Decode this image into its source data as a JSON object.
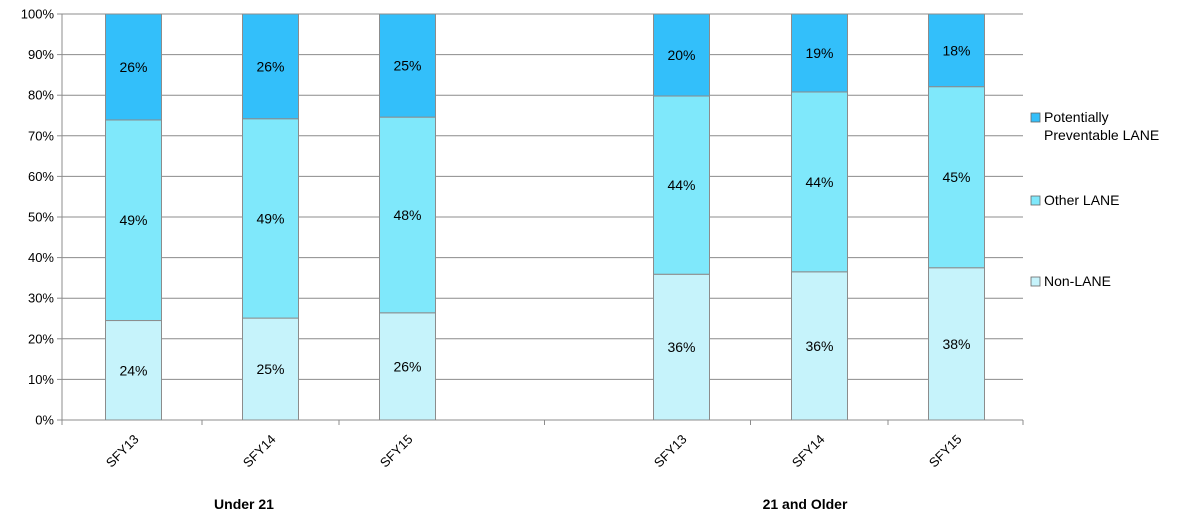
{
  "chart_data": {
    "type": "bar",
    "stacked": true,
    "percent": true,
    "groups": [
      {
        "label": "Under 21",
        "categories": [
          "SFY13",
          "SFY14",
          "SFY15"
        ]
      },
      {
        "label": "21 and Older",
        "categories": [
          "SFY13",
          "SFY14",
          "SFY15"
        ]
      }
    ],
    "categories": [
      "SFY13",
      "SFY14",
      "SFY15",
      "SFY13",
      "SFY14",
      "SFY15"
    ],
    "series": [
      {
        "name": "Non-LANE",
        "color": "#c6f3fb",
        "values": [
          24.5,
          25.1,
          26.4,
          35.9,
          36.5,
          37.5
        ],
        "labels": [
          "24%",
          "25%",
          "26%",
          "36%",
          "36%",
          "38%"
        ]
      },
      {
        "name": "Other LANE",
        "color": "#7fe8fb",
        "values": [
          49.4,
          49.1,
          48.2,
          43.9,
          44.3,
          44.6
        ],
        "labels": [
          "49%",
          "49%",
          "48%",
          "44%",
          "44%",
          "45%"
        ]
      },
      {
        "name": "Potentially Preventable LANE",
        "color": "#33bffa",
        "values": [
          26.1,
          25.8,
          25.4,
          20.2,
          19.2,
          17.9
        ],
        "labels": [
          "26%",
          "26%",
          "25%",
          "20%",
          "19%",
          "18%"
        ]
      }
    ],
    "legend_order": [
      {
        "name_lines": [
          "Potentially",
          "Preventable LANE"
        ],
        "color": "#33bffa"
      },
      {
        "name_lines": [
          "Other LANE"
        ],
        "color": "#7fe8fb"
      },
      {
        "name_lines": [
          "Non-LANE"
        ],
        "color": "#c6f3fb"
      }
    ],
    "y_ticks": [
      "0%",
      "10%",
      "20%",
      "30%",
      "40%",
      "50%",
      "60%",
      "70%",
      "80%",
      "90%",
      "100%"
    ],
    "ylim": [
      0,
      100
    ],
    "grid": true,
    "legend_position": "right"
  }
}
